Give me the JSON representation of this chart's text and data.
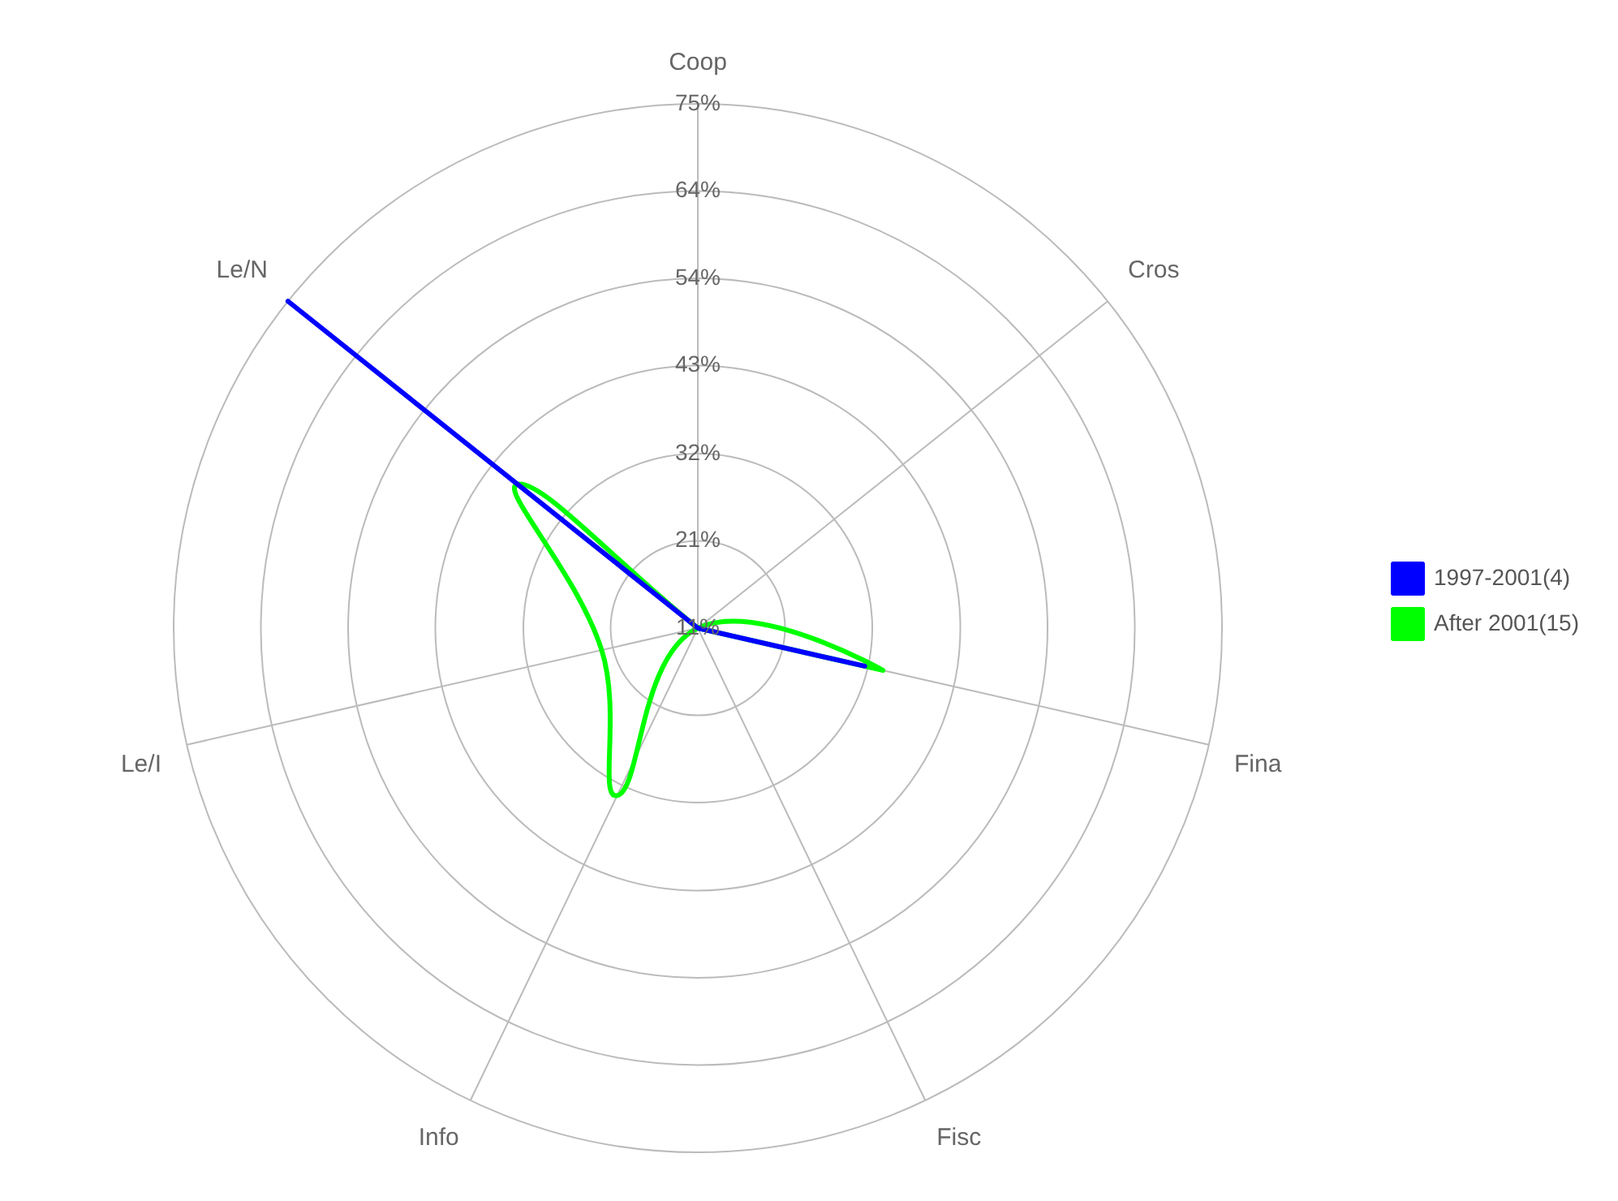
{
  "chart_data": {
    "type": "radar",
    "categories": [
      "Coop",
      "Cros",
      "Fina",
      "Fisc",
      "Info",
      "Le/I",
      "Le/N"
    ],
    "series": [
      {
        "name": "1997-2001(4)",
        "color": "#0000ff",
        "values": [
          10.7,
          10.7,
          31.7,
          10.7,
          10.7,
          10.7,
          75
        ]
      },
      {
        "name": "After 2001(15)",
        "color": "#00ff00",
        "values": [
          10.7,
          10.7,
          34,
          10.7,
          33.5,
          22.8,
          39
        ]
      }
    ],
    "ylim": [
      10.7,
      75
    ],
    "yticks": [
      {
        "value": 10.7,
        "label": "11%"
      },
      {
        "value": 21.4,
        "label": "21%"
      },
      {
        "value": 32.1,
        "label": "32%"
      },
      {
        "value": 42.9,
        "label": "43%"
      },
      {
        "value": 53.6,
        "label": "54%"
      },
      {
        "value": 64.3,
        "label": "64%"
      },
      {
        "value": 75,
        "label": "75%"
      }
    ],
    "grid": true,
    "legend": "right",
    "marker": "none",
    "line_style": "solid"
  }
}
